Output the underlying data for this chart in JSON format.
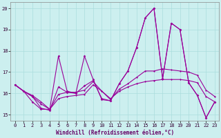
{
  "background_color": "#ccefef",
  "grid_color": "#aadddd",
  "line_color": "#990099",
  "ylim": [
    14.7,
    20.3
  ],
  "xlim": [
    -0.5,
    23.5
  ],
  "yticks": [
    15,
    16,
    17,
    18,
    19,
    20
  ],
  "xticks": [
    0,
    1,
    2,
    3,
    4,
    5,
    6,
    7,
    8,
    9,
    10,
    11,
    12,
    13,
    14,
    15,
    16,
    17,
    18,
    19,
    20,
    21,
    22,
    23
  ],
  "xlabel": "Windchill (Refroidissement éolien,°C)",
  "series": [
    [
      16.4,
      16.1,
      15.9,
      15.6,
      15.25,
      15.75,
      15.85,
      15.9,
      15.95,
      16.4,
      16.1,
      15.75,
      16.1,
      16.3,
      16.45,
      16.55,
      16.6,
      16.65,
      16.65,
      16.65,
      16.6,
      16.5,
      15.85,
      15.6
    ],
    [
      16.4,
      16.1,
      15.85,
      15.5,
      15.25,
      15.95,
      16.05,
      16.05,
      16.15,
      16.55,
      16.1,
      15.7,
      16.2,
      16.45,
      16.75,
      17.05,
      17.05,
      17.15,
      17.1,
      17.05,
      17.0,
      16.85,
      16.15,
      15.85
    ],
    [
      16.4,
      16.1,
      15.85,
      15.3,
      15.2,
      16.3,
      16.05,
      16.0,
      16.35,
      16.6,
      15.75,
      15.65,
      16.45,
      17.05,
      18.15,
      19.55,
      20.0,
      16.7,
      19.3,
      19.0,
      16.5,
      15.9,
      14.85,
      15.6
    ],
    [
      16.4,
      16.1,
      15.6,
      15.25,
      15.25,
      17.75,
      16.1,
      16.0,
      17.75,
      16.65,
      15.7,
      15.65,
      16.45,
      17.05,
      18.15,
      19.55,
      20.0,
      16.7,
      19.3,
      19.0,
      16.5,
      15.9,
      14.85,
      15.6
    ]
  ],
  "linewidths": [
    0.8,
    0.8,
    0.8,
    0.8
  ],
  "markersizes": [
    1.5,
    1.5,
    1.8,
    1.8
  ]
}
